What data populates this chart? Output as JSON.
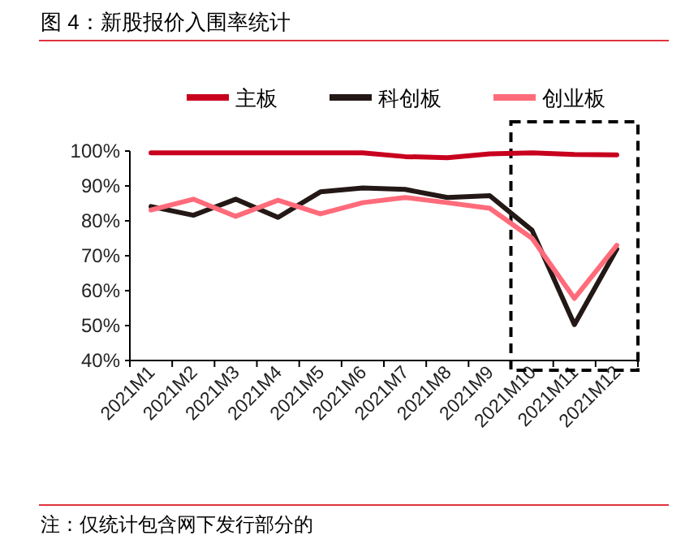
{
  "chart_data": {
    "type": "line",
    "title": "图 4：新股报价入围率统计",
    "categories": [
      "2021M1",
      "2021M2",
      "2021M3",
      "2021M4",
      "2021M5",
      "2021M6",
      "2021M7",
      "2021M8",
      "2021M9",
      "2021M10",
      "2021M11",
      "2021M12"
    ],
    "series": [
      {
        "name": "主板",
        "color": "#c8001e",
        "values": [
          99.5,
          99.5,
          99.5,
          99.5,
          99.5,
          99.5,
          98.4,
          98.1,
          99.2,
          99.5,
          99,
          98.9
        ]
      },
      {
        "name": "科创板",
        "color": "#231815",
        "values": [
          84.1,
          81.6,
          86.2,
          81,
          88.3,
          89.4,
          89,
          86.7,
          87.2,
          77.3,
          50.3,
          71.9
        ]
      },
      {
        "name": "创业板",
        "color": "#ff6b7a",
        "values": [
          83.1,
          86.2,
          81.3,
          85.9,
          82,
          85.2,
          86.7,
          85.2,
          83.6,
          75,
          57.8,
          73
        ]
      }
    ],
    "ylim": [
      40,
      100
    ],
    "yticks": [
      {
        "value": 40,
        "label": "40%"
      },
      {
        "value": 50,
        "label": "50%"
      },
      {
        "value": 60,
        "label": "60%"
      },
      {
        "value": 70,
        "label": "70%"
      },
      {
        "value": 80,
        "label": "80%"
      },
      {
        "value": 90,
        "label": "90%"
      },
      {
        "value": 100,
        "label": "100%"
      }
    ],
    "legend": "top",
    "grid": false,
    "marker": "none",
    "line_style": "solid",
    "annotations": [
      "注：仅统计包含网下发行部分的"
    ]
  }
}
